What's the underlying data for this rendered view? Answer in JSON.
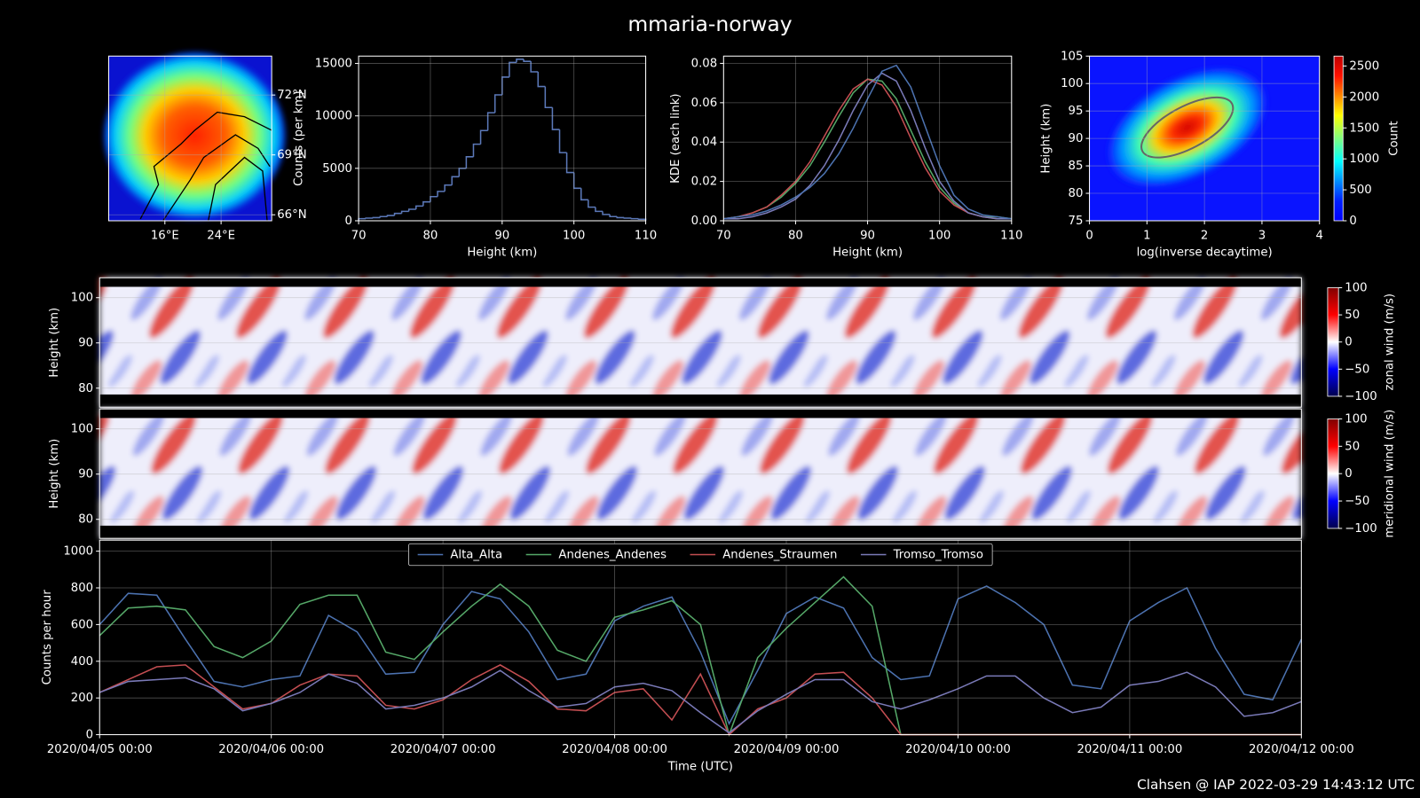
{
  "title": "mmaria-norway",
  "footer": "Clahsen @ IAP 2022-03-29 14:43:12 UTC",
  "chart_data": [
    {
      "type": "map",
      "xlim": [
        8,
        31.2
      ],
      "ylim": [
        65.7,
        73.95
      ],
      "grid": true,
      "xticks": [
        {
          "value": 16,
          "label": "16°E"
        },
        {
          "value": 24,
          "label": "24°E"
        }
      ],
      "yticks": [
        {
          "value": 72,
          "label": "72°N"
        },
        {
          "value": 69,
          "label": "69°N"
        },
        {
          "value": 66,
          "label": "66°N"
        }
      ]
    },
    {
      "type": "histogram",
      "xlabel": "Height (km)",
      "ylabel": "Counts (per km)",
      "color": "#5b78b8",
      "grid": true,
      "bins": [
        70,
        71,
        72,
        73,
        74,
        75,
        76,
        77,
        78,
        79,
        80,
        81,
        82,
        83,
        84,
        85,
        86,
        87,
        88,
        89,
        90,
        91,
        92,
        93,
        94,
        95,
        96,
        97,
        98,
        99,
        100,
        101,
        102,
        103,
        104,
        105,
        106,
        107,
        108,
        109,
        110
      ],
      "values": [
        200,
        250,
        300,
        400,
        500,
        700,
        900,
        1100,
        1400,
        1800,
        2300,
        2800,
        3400,
        4200,
        5000,
        6100,
        7300,
        8600,
        10300,
        12000,
        13700,
        15100,
        15400,
        15200,
        14200,
        12800,
        10800,
        8700,
        6500,
        4600,
        3100,
        2000,
        1300,
        900,
        600,
        400,
        300,
        250,
        200,
        150
      ],
      "xlim": [
        70,
        110
      ],
      "xticks": [
        70,
        80,
        90,
        100,
        110
      ],
      "ylim": [
        0,
        15700
      ],
      "yticks": [
        0,
        5000,
        10000,
        15000
      ]
    },
    {
      "type": "line",
      "xlabel": "Height (km)",
      "ylabel": "KDE (each link)",
      "grid": true,
      "x": [
        70,
        72,
        74,
        76,
        78,
        80,
        82,
        84,
        86,
        88,
        90,
        92,
        94,
        96,
        98,
        100,
        102,
        104,
        106,
        108,
        110
      ],
      "series": [
        {
          "color": "#55a868",
          "values": [
            0.001,
            0.002,
            0.004,
            0.007,
            0.012,
            0.019,
            0.028,
            0.04,
            0.053,
            0.065,
            0.072,
            0.071,
            0.062,
            0.046,
            0.03,
            0.017,
            0.009,
            0.004,
            0.002,
            0.002,
            0.001
          ]
        },
        {
          "color": "#c44e52",
          "values": [
            0.001,
            0.002,
            0.004,
            0.007,
            0.013,
            0.02,
            0.03,
            0.043,
            0.056,
            0.067,
            0.072,
            0.069,
            0.058,
            0.042,
            0.027,
            0.015,
            0.008,
            0.004,
            0.002,
            0.001,
            0.001
          ]
        },
        {
          "color": "#7a7ab8",
          "values": [
            0.001,
            0.001,
            0.002,
            0.004,
            0.007,
            0.011,
            0.018,
            0.028,
            0.041,
            0.056,
            0.069,
            0.075,
            0.071,
            0.056,
            0.037,
            0.02,
            0.01,
            0.004,
            0.002,
            0.001,
            0.001
          ]
        },
        {
          "color": "#4c72b0",
          "values": [
            0.001,
            0.002,
            0.003,
            0.005,
            0.008,
            0.012,
            0.017,
            0.024,
            0.034,
            0.047,
            0.062,
            0.076,
            0.079,
            0.068,
            0.048,
            0.028,
            0.013,
            0.006,
            0.003,
            0.002,
            0.001
          ]
        }
      ],
      "xlim": [
        70,
        110
      ],
      "xticks": [
        70,
        80,
        90,
        100,
        110
      ],
      "ylim": [
        0,
        0.0837
      ],
      "yticks": [
        {
          "value": 0,
          "label": "0.00"
        },
        0.02,
        0.04,
        0.06,
        0.08
      ]
    },
    {
      "type": "hist2d",
      "xlabel": "log(inverse decaytime)",
      "ylabel": "Height (km)",
      "grid": true,
      "xlim": [
        0,
        4
      ],
      "xticks": [
        0,
        1,
        2,
        3,
        4
      ],
      "ylim": [
        75,
        105
      ],
      "yticks": [
        75,
        80,
        85,
        90,
        95,
        100,
        105
      ],
      "colorbar": {
        "label": "Count",
        "colormap": "jet",
        "lim": [
          0,
          2660
        ],
        "ticks": [
          0,
          500,
          1000,
          1500,
          2000,
          2500
        ]
      }
    },
    {
      "type": "heatmap",
      "ylabel": "Height (km)",
      "grid": true,
      "ylim": [
        75.8,
        104.4
      ],
      "yticks": [
        80,
        90,
        100
      ],
      "colorbar": {
        "label": "zonal wind (m/s)",
        "colormap": "seismic",
        "lim": [
          -100,
          100
        ],
        "ticks": [
          {
            "value": -100,
            "label": "−100"
          },
          {
            "value": -50,
            "label": "−50"
          },
          0,
          50,
          100
        ]
      }
    },
    {
      "type": "heatmap",
      "ylabel": "Height (km)",
      "grid": true,
      "ylim": [
        75.8,
        104.4
      ],
      "yticks": [
        80,
        90,
        100
      ],
      "colorbar": {
        "label": "meridional wind (m/s)",
        "colormap": "seismic",
        "lim": [
          -100,
          100
        ],
        "ticks": [
          {
            "value": -100,
            "label": "−100"
          },
          {
            "value": -50,
            "label": "−50"
          },
          0,
          50,
          100
        ]
      }
    },
    {
      "type": "line",
      "xlabel": "Time (UTC)",
      "ylabel": "Counts per hour",
      "grid": true,
      "legend": "upper center",
      "x": [
        "2020/04/05 00:00",
        "2020/04/05 04:00",
        "2020/04/05 08:00",
        "2020/04/05 12:00",
        "2020/04/05 16:00",
        "2020/04/05 20:00",
        "2020/04/06 00:00",
        "2020/04/06 04:00",
        "2020/04/06 08:00",
        "2020/04/06 12:00",
        "2020/04/06 16:00",
        "2020/04/06 20:00",
        "2020/04/07 00:00",
        "2020/04/07 04:00",
        "2020/04/07 08:00",
        "2020/04/07 12:00",
        "2020/04/07 16:00",
        "2020/04/07 20:00",
        "2020/04/08 00:00",
        "2020/04/08 04:00",
        "2020/04/08 08:00",
        "2020/04/08 12:00",
        "2020/04/08 16:00",
        "2020/04/08 20:00",
        "2020/04/09 00:00",
        "2020/04/09 04:00",
        "2020/04/09 08:00",
        "2020/04/09 12:00",
        "2020/04/09 16:00",
        "2020/04/09 20:00",
        "2020/04/10 00:00",
        "2020/04/10 04:00",
        "2020/04/10 08:00",
        "2020/04/10 12:00",
        "2020/04/10 16:00",
        "2020/04/10 20:00",
        "2020/04/11 00:00",
        "2020/04/11 04:00",
        "2020/04/11 08:00",
        "2020/04/11 12:00",
        "2020/04/11 16:00",
        "2020/04/11 20:00",
        "2020/04/12 00:00"
      ],
      "series": [
        {
          "name": "Alta_Alta",
          "color": "#4c72b0",
          "values": [
            600,
            770,
            760,
            520,
            290,
            260,
            300,
            320,
            650,
            560,
            330,
            340,
            600,
            780,
            740,
            560,
            300,
            330,
            620,
            700,
            750,
            450,
            60,
            350,
            660,
            750,
            690,
            420,
            300,
            320,
            740,
            810,
            720,
            600,
            270,
            250,
            620,
            720,
            800,
            470,
            220,
            190,
            520
          ]
        },
        {
          "name": "Andenes_Andenes",
          "color": "#55a868",
          "values": [
            540,
            690,
            700,
            680,
            480,
            420,
            510,
            710,
            760,
            760,
            450,
            410,
            560,
            700,
            820,
            700,
            460,
            400,
            640,
            680,
            730,
            600,
            0,
            420,
            580,
            720,
            860,
            700,
            0,
            0,
            0,
            0,
            0,
            0,
            0,
            0,
            0,
            0,
            0,
            0,
            0,
            0,
            0
          ]
        },
        {
          "name": "Andenes_Straumen",
          "color": "#c44e52",
          "values": [
            230,
            300,
            370,
            380,
            260,
            140,
            170,
            270,
            330,
            320,
            160,
            140,
            190,
            300,
            380,
            290,
            140,
            130,
            230,
            250,
            80,
            330,
            0,
            140,
            200,
            330,
            340,
            200,
            0,
            0,
            0,
            0,
            0,
            0,
            0,
            0,
            0,
            0,
            0,
            0,
            0,
            0,
            0
          ]
        },
        {
          "name": "Tromso_Tromso",
          "color": "#7a7ab8",
          "values": [
            230,
            290,
            300,
            310,
            250,
            130,
            170,
            230,
            330,
            280,
            140,
            160,
            200,
            260,
            350,
            240,
            150,
            170,
            260,
            280,
            240,
            120,
            10,
            130,
            220,
            300,
            300,
            180,
            140,
            190,
            250,
            320,
            320,
            200,
            120,
            150,
            270,
            290,
            340,
            260,
            100,
            120,
            180
          ]
        }
      ],
      "xlim": [
        "2020/04/05 00:00",
        "2020/04/12 00:00"
      ],
      "xticks": [
        "2020/04/05 00:00",
        "2020/04/06 00:00",
        "2020/04/07 00:00",
        "2020/04/08 00:00",
        "2020/04/09 00:00",
        "2020/04/10 00:00",
        "2020/04/11 00:00",
        "2020/04/12 00:00"
      ],
      "ylim": [
        0,
        1060
      ],
      "yticks": [
        0,
        200,
        400,
        600,
        800,
        1000
      ]
    }
  ]
}
